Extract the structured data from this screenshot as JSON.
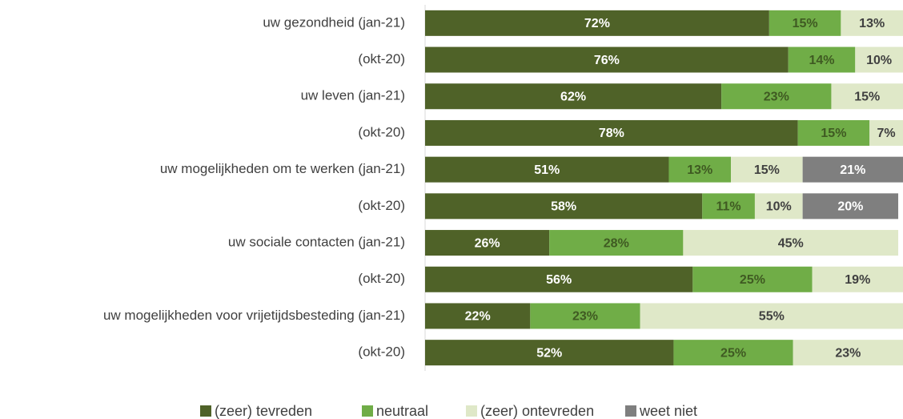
{
  "chart_data": {
    "type": "stacked-bar-horizontal",
    "categories": [
      "uw gezondheid (jan-21)",
      "(okt-20)",
      "uw leven (jan-21)",
      "(okt-20)",
      "uw mogelijkheden om te werken (jan-21)",
      "(okt-20)",
      "uw sociale contacten (jan-21)",
      "(okt-20)",
      "uw mogelijkheden voor vrijetijdsbesteding (jan-21)",
      "(okt-20)"
    ],
    "xlim": [
      0,
      100
    ],
    "series": [
      {
        "name": "(zeer) tevreden",
        "color": "#4f6228",
        "label_color": "#ffffff",
        "values": [
          72,
          76,
          62,
          78,
          51,
          58,
          26,
          56,
          22,
          52
        ],
        "value_labels": [
          "72%",
          "76%",
          "62%",
          "78%",
          "51%",
          "58%",
          "26%",
          "56%",
          "22%",
          "52%"
        ]
      },
      {
        "name": "neutraal",
        "color": "#70ad47",
        "label_color": "#3f5a22",
        "values": [
          15,
          14,
          23,
          15,
          13,
          11,
          28,
          25,
          23,
          25
        ],
        "value_labels": [
          "15%",
          "14%",
          "23%",
          "15%",
          "13%",
          "11%",
          "28%",
          "25%",
          "23%",
          "25%"
        ]
      },
      {
        "name": "(zeer) ontevreden",
        "color": "#dfe8c8",
        "label_color": "#404040",
        "values": [
          13,
          10,
          15,
          7,
          15,
          10,
          45,
          19,
          55,
          23
        ],
        "value_labels": [
          "13%",
          "10%",
          "15%",
          "7%",
          "15%",
          "10%",
          "45%",
          "19%",
          "55%",
          "23%"
        ]
      },
      {
        "name": "weet niet",
        "color": "#7f7f7f",
        "label_color": "#ffffff",
        "values": [
          null,
          null,
          null,
          null,
          21,
          20,
          null,
          null,
          null,
          null
        ],
        "value_labels": [
          null,
          null,
          null,
          null,
          "21%",
          "20%",
          null,
          null,
          null,
          null
        ]
      }
    ],
    "legend": "bottom"
  }
}
